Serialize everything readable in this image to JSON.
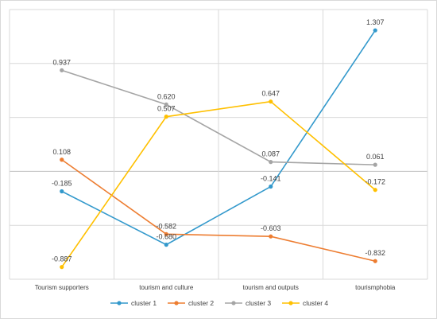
{
  "chart_data": {
    "type": "line",
    "title": "",
    "xlabel": "",
    "ylabel": "",
    "categories": [
      "Tourism supporters",
      "tourism and culture",
      "tourism and outputs",
      "tourismphobia"
    ],
    "ylim": [
      -1.0,
      1.5
    ],
    "grid": true,
    "legend_position": "bottom",
    "series": [
      {
        "name": "cluster 1",
        "color": "#3399cc",
        "values": [
          -0.185,
          -0.68,
          -0.141,
          1.307
        ],
        "labels": [
          "-0.185",
          "-0.680",
          "-0.141",
          "1.307"
        ]
      },
      {
        "name": "cluster 2",
        "color": "#ed7d31",
        "values": [
          0.108,
          -0.582,
          -0.603,
          -0.832
        ],
        "labels": [
          "0.108",
          "-0.582",
          "-0.603",
          "-0.832"
        ]
      },
      {
        "name": "cluster 3",
        "color": "#a5a5a5",
        "values": [
          0.937,
          0.62,
          0.087,
          0.061
        ],
        "labels": [
          "0.937",
          "0.620",
          "0.087",
          "0.061"
        ]
      },
      {
        "name": "cluster 4",
        "color": "#ffc000",
        "values": [
          -0.887,
          0.507,
          0.647,
          -0.172
        ],
        "labels": [
          "-0.887",
          "0.507",
          "0.647",
          "-0.172"
        ]
      }
    ]
  }
}
